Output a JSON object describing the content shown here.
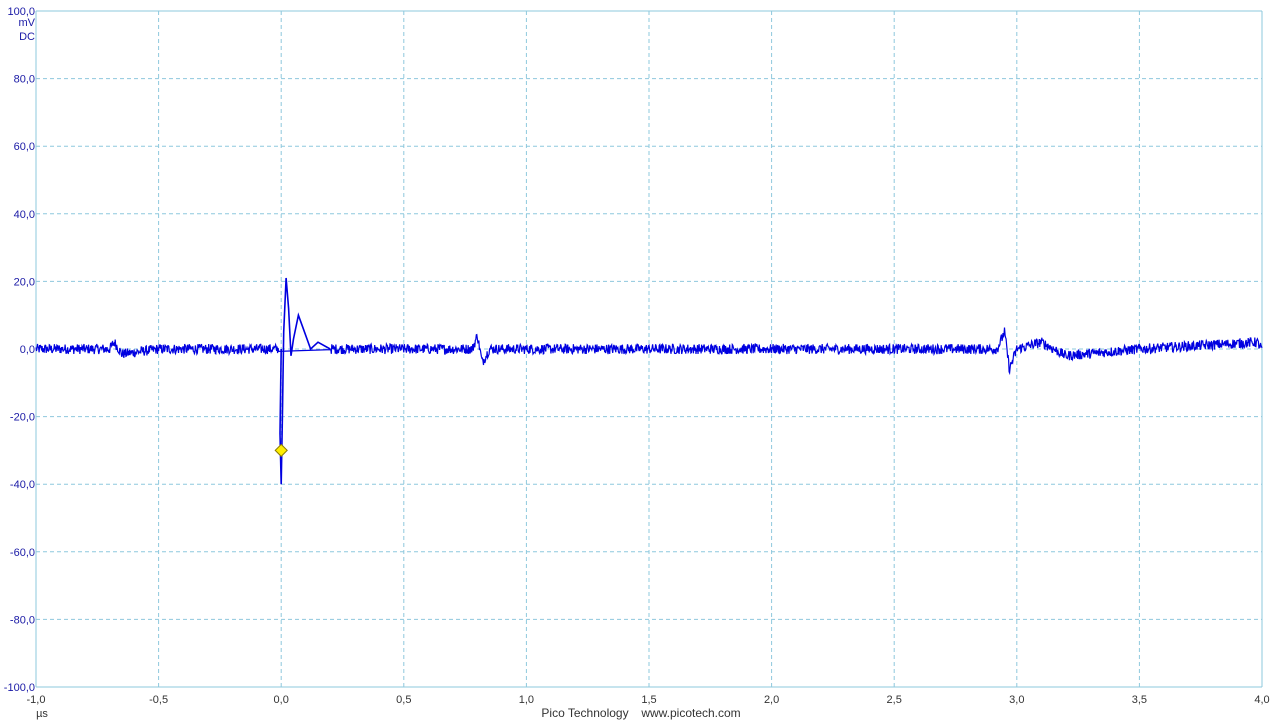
{
  "chart_data": {
    "type": "line",
    "xlim": [
      -1.0,
      4.0
    ],
    "ylim": [
      -100.0,
      100.0
    ],
    "grid": true,
    "y_unit": "mV",
    "y_coupling": "DC",
    "x_unit": "µs",
    "x_ticks": [
      "-1,0",
      "-0,5",
      "0,0",
      "0,5",
      "1,0",
      "1,5",
      "2,0",
      "2,5",
      "3,0",
      "3,5",
      "4,0"
    ],
    "x_tick_values": [
      -1.0,
      -0.5,
      0.0,
      0.5,
      1.0,
      1.5,
      2.0,
      2.5,
      3.0,
      3.5,
      4.0
    ],
    "y_ticks": [
      "100,0",
      "80,0",
      "60,0",
      "40,0",
      "20,0",
      "0,0",
      "-20,0",
      "-40,0",
      "-60,0",
      "-80,0",
      "-100,0"
    ],
    "y_tick_values": [
      100,
      80,
      60,
      40,
      20,
      0,
      -20,
      -40,
      -60,
      -80,
      -100
    ],
    "series": [
      {
        "color": "#0000e0",
        "noise_mv": 1.5,
        "x": [
          -1.0,
          -0.7,
          -0.68,
          -0.65,
          -0.5,
          0.0,
          -0.005,
          0.0,
          0.005,
          0.01,
          0.02,
          0.03,
          0.04,
          0.05,
          0.07,
          0.09,
          0.12,
          0.15,
          0.2,
          0.78,
          0.8,
          0.82,
          0.85,
          1.5,
          2.4,
          2.92,
          2.95,
          2.97,
          3.0,
          3.1,
          3.2,
          3.5,
          3.98,
          4.0
        ],
        "y": [
          0.0,
          0.0,
          2.0,
          -1.5,
          0.0,
          0.0,
          -25.0,
          -40.0,
          -20.0,
          5.0,
          21.0,
          12.0,
          -2.0,
          3.0,
          10.0,
          6.0,
          0.0,
          2.0,
          0.0,
          0.0,
          4.0,
          -4.0,
          0.0,
          0.0,
          0.0,
          0.0,
          5.0,
          -6.0,
          0.0,
          2.0,
          -2.0,
          0.0,
          2.0,
          0.0
        ]
      }
    ],
    "trigger_marker": {
      "x": 0.0,
      "y": -30.0,
      "color": "#ffee00"
    }
  },
  "footer": {
    "brand": "Pico Technology",
    "url": "www.picotech.com"
  }
}
